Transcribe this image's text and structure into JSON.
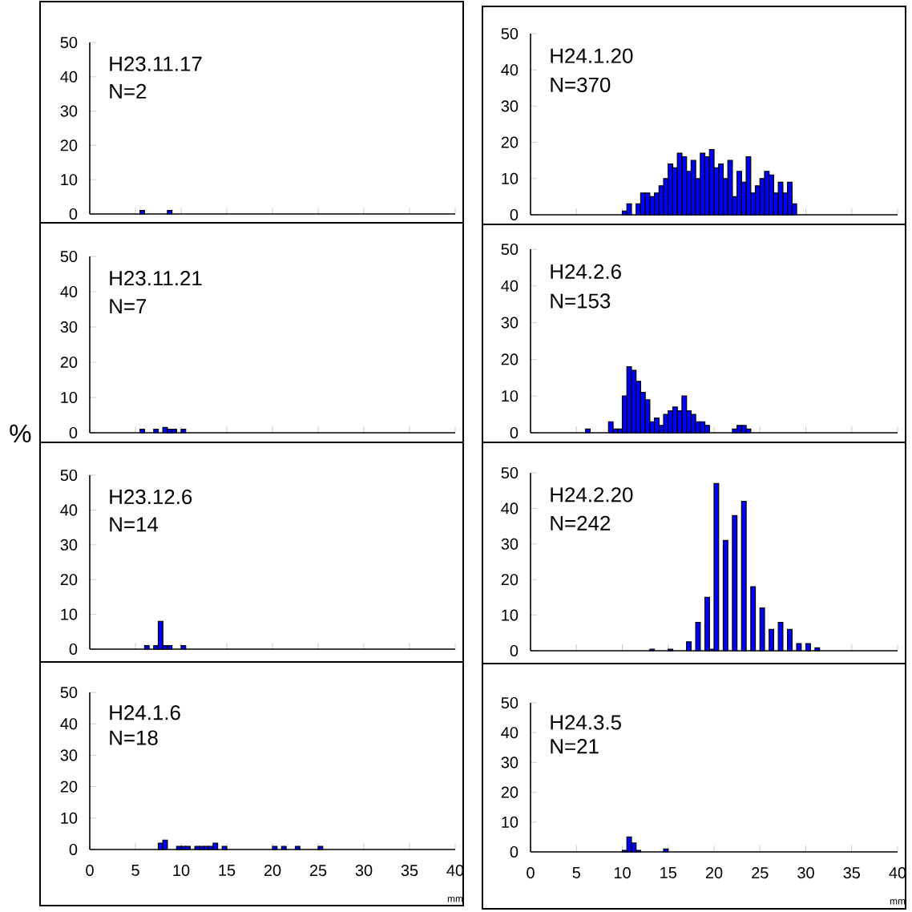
{
  "chart_data": [
    {
      "type": "histogram",
      "title": "H23.11.17",
      "subtitle": "N=2",
      "bins": [
        5.5,
        6,
        6.5,
        7,
        7.5,
        8,
        8.5,
        9
      ],
      "values": [
        1,
        0,
        0,
        0,
        0,
        0,
        1
      ],
      "color": "#0000ff",
      "xlim": [
        0,
        40
      ],
      "ylim": [
        0,
        50
      ],
      "xticks": [
        0,
        5,
        10,
        15,
        20,
        25,
        30,
        35,
        40
      ],
      "yticks": [
        0,
        10,
        20,
        30,
        40,
        50
      ],
      "tick_labels": "y"
    },
    {
      "type": "histogram",
      "title": "H24.1.20",
      "subtitle": "N=370",
      "bins": [
        10,
        10.5,
        11,
        11.5,
        12,
        12.5,
        13,
        13.5,
        14,
        14.5,
        15,
        15.5,
        16,
        16.5,
        17,
        17.5,
        18,
        18.5,
        19,
        19.5,
        20,
        20.5,
        21,
        21.5,
        22,
        22.5,
        23,
        23.5,
        24,
        24.5,
        25,
        25.5,
        26,
        26.5,
        27,
        27.5,
        28,
        28.5,
        29
      ],
      "values": [
        1,
        3,
        0,
        3,
        6,
        6,
        5,
        6,
        8,
        10,
        14,
        13,
        17,
        16,
        12,
        15,
        10,
        17,
        16,
        18,
        13,
        14,
        10,
        15,
        5,
        12,
        9,
        16,
        6,
        8,
        10,
        12,
        11,
        6,
        9,
        6,
        9,
        3
      ],
      "color": "#0000ff",
      "xlim": [
        0,
        40
      ],
      "ylim": [
        0,
        50
      ],
      "xticks": [
        0,
        5,
        10,
        15,
        20,
        25,
        30,
        35,
        40
      ],
      "yticks": [
        0,
        10,
        20,
        30,
        40,
        50
      ],
      "tick_labels": "y"
    },
    {
      "type": "histogram",
      "title": "H23.11.21",
      "subtitle": "N=7",
      "bins": [
        5.5,
        6,
        6.5,
        7,
        7.5,
        8,
        8.5,
        9,
        9.5,
        10,
        10.5
      ],
      "values": [
        1,
        0,
        0,
        1,
        0,
        1.5,
        1,
        1,
        0,
        1
      ],
      "color": "#0000ff",
      "xlim": [
        0,
        40
      ],
      "ylim": [
        0,
        50
      ],
      "xticks": [
        0,
        5,
        10,
        15,
        20,
        25,
        30,
        35,
        40
      ],
      "yticks": [
        0,
        10,
        20,
        30,
        40,
        50
      ],
      "tick_labels": "y"
    },
    {
      "type": "histogram",
      "title": "H24.2.6",
      "subtitle": "N=153",
      "bins": [
        6,
        6.5,
        7,
        7.5,
        8,
        8.5,
        9,
        9.5,
        10,
        10.5,
        11,
        11.5,
        12,
        12.5,
        13,
        13.5,
        14,
        14.5,
        15,
        15.5,
        16,
        16.5,
        17,
        17.5,
        18,
        18.5,
        19,
        19.5,
        20,
        20.5,
        21,
        21.5,
        22,
        22.5,
        23,
        23.5,
        24
      ],
      "values": [
        1,
        0,
        0,
        0,
        0,
        3,
        1,
        1,
        10,
        18,
        17,
        14,
        11,
        9,
        3,
        4,
        2,
        5,
        6,
        7,
        6,
        10,
        6,
        5,
        3,
        3,
        2,
        0,
        0,
        0,
        0,
        0,
        1,
        2,
        2,
        1
      ],
      "color": "#0000ff",
      "xlim": [
        0,
        40
      ],
      "ylim": [
        0,
        50
      ],
      "xticks": [
        0,
        5,
        10,
        15,
        20,
        25,
        30,
        35,
        40
      ],
      "yticks": [
        0,
        10,
        20,
        30,
        40,
        50
      ],
      "tick_labels": "y"
    },
    {
      "type": "histogram",
      "title": "H23.12.6",
      "subtitle": "N=14",
      "ylabel": "%",
      "bins": [
        6,
        6.5,
        7,
        7.5,
        8,
        8.5,
        9,
        9.5,
        10,
        10.5
      ],
      "values": [
        1,
        0,
        1,
        8,
        1,
        1,
        0,
        0,
        1
      ],
      "color": "#0000ff",
      "xlim": [
        0,
        40
      ],
      "ylim": [
        0,
        50
      ],
      "xticks": [
        0,
        5,
        10,
        15,
        20,
        25,
        30,
        35,
        40
      ],
      "yticks": [
        0,
        10,
        20,
        30,
        40,
        50
      ],
      "tick_labels": "y"
    },
    {
      "type": "histogram",
      "title": "H24.2.20",
      "subtitle": "N=242",
      "bins": [
        13,
        13.5,
        14,
        14.5,
        15,
        15.5,
        16,
        16.5,
        17,
        17.5,
        18,
        18.5,
        19,
        19.5,
        20,
        20.5,
        21,
        21.5,
        22,
        22.5,
        23,
        23.5,
        24,
        24.5,
        25,
        25.5,
        26,
        26.5,
        27,
        27.5,
        28,
        28.5,
        29,
        29.5,
        30,
        30.5,
        31,
        31.5
      ],
      "values": [
        0.4,
        0,
        0,
        0,
        0.4,
        0,
        0,
        0,
        2.5,
        0,
        8,
        0,
        15,
        0.4,
        47,
        0,
        31,
        0,
        38,
        0,
        42,
        0,
        18,
        0,
        12,
        0,
        6,
        0,
        8,
        0,
        6,
        0,
        2,
        0,
        2,
        0,
        0.8
      ],
      "color": "#0000ff",
      "xlim": [
        0,
        40
      ],
      "ylim": [
        0,
        50
      ],
      "xticks": [
        0,
        5,
        10,
        15,
        20,
        25,
        30,
        35,
        40
      ],
      "yticks": [
        0,
        10,
        20,
        30,
        40,
        50
      ],
      "tick_labels": "y"
    },
    {
      "type": "histogram",
      "title": "H24.1.6",
      "subtitle": "N=18",
      "xlabel": "mm",
      "bins": [
        7.5,
        8,
        8.5,
        9,
        9.5,
        10,
        10.5,
        11,
        11.5,
        12,
        12.5,
        13,
        13.5,
        14,
        14.5,
        15,
        15.5,
        16,
        16.5,
        17,
        17.5,
        18,
        18.5,
        19,
        19.5,
        20,
        20.5,
        21,
        21.5,
        22,
        22.5,
        23,
        23.5,
        24,
        24.5,
        25,
        25.5
      ],
      "values": [
        2,
        3,
        0,
        0,
        1,
        1,
        1,
        0,
        1,
        1,
        1,
        1,
        2,
        0,
        1,
        0,
        0,
        0,
        0,
        0,
        0,
        0,
        0,
        0,
        0,
        1,
        0,
        1,
        0,
        0,
        1,
        0,
        0,
        0,
        0,
        1
      ],
      "color": "#0000ff",
      "xlim": [
        0,
        40
      ],
      "ylim": [
        0,
        50
      ],
      "xticks": [
        0,
        5,
        10,
        15,
        20,
        25,
        30,
        35,
        40
      ],
      "yticks": [
        0,
        10,
        20,
        30,
        40,
        50
      ]
    },
    {
      "type": "histogram",
      "title": "H24.3.5",
      "subtitle": "N=21",
      "xlabel": "mm",
      "bins": [
        10,
        10.5,
        11,
        11.5,
        12,
        12.5,
        13,
        13.5,
        14,
        14.5,
        15
      ],
      "values": [
        0.5,
        5,
        3,
        0.5,
        0,
        0,
        0,
        0,
        0,
        1
      ],
      "color": "#0000ff",
      "xlim": [
        0,
        40
      ],
      "ylim": [
        0,
        50
      ],
      "xticks": [
        0,
        5,
        10,
        15,
        20,
        25,
        30,
        35,
        40
      ],
      "yticks": [
        0,
        10,
        20,
        30,
        40,
        50
      ]
    }
  ]
}
